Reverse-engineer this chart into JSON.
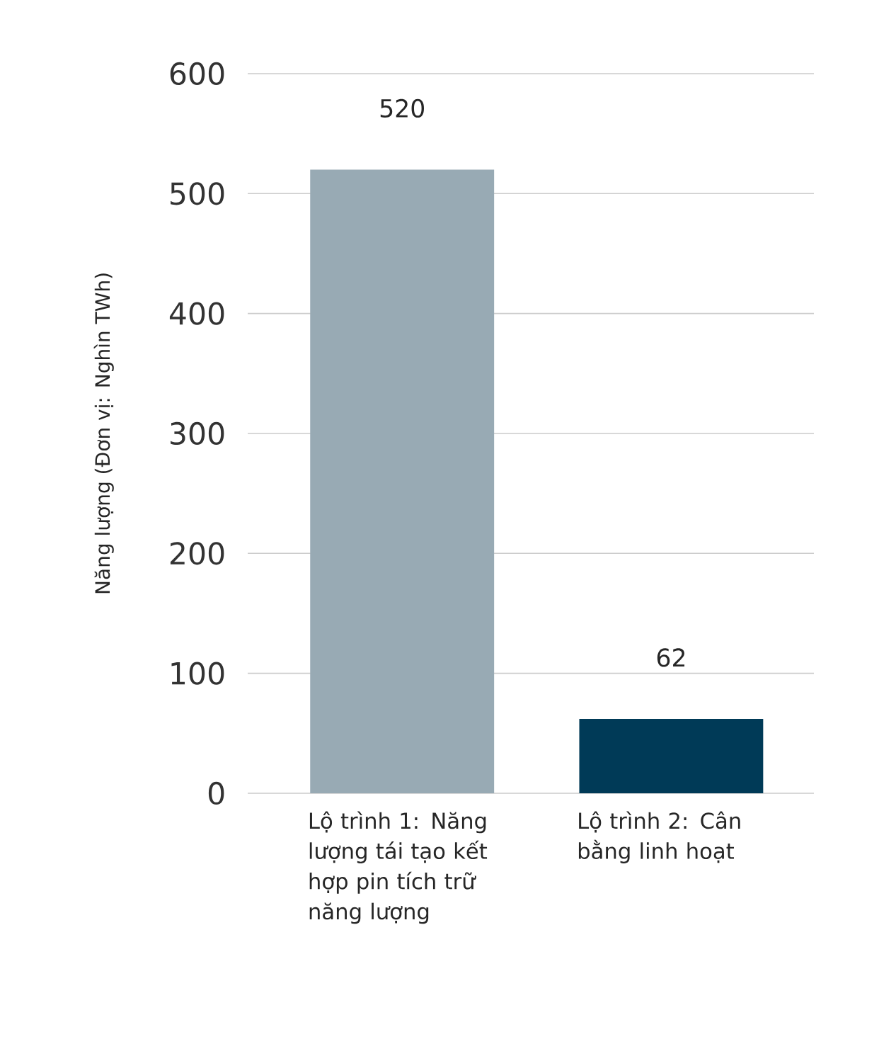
{
  "chart_data": {
    "type": "bar",
    "ylabel": "Năng lượng (Đơn vị: Nghìn TWh)",
    "categories": [
      "Lộ trình 1: Năng lượng tái tạo kết hợp pin tích trữ năng lượng",
      "Lộ trình 2: Cân bằng linh hoạt"
    ],
    "values": [
      520,
      62
    ],
    "colors": [
      "#98aab4",
      "#003a57"
    ],
    "ylim": [
      0,
      600
    ],
    "yticks": [
      0,
      100,
      200,
      300,
      400,
      500,
      600
    ],
    "grid": "y",
    "data_labels": true
  }
}
